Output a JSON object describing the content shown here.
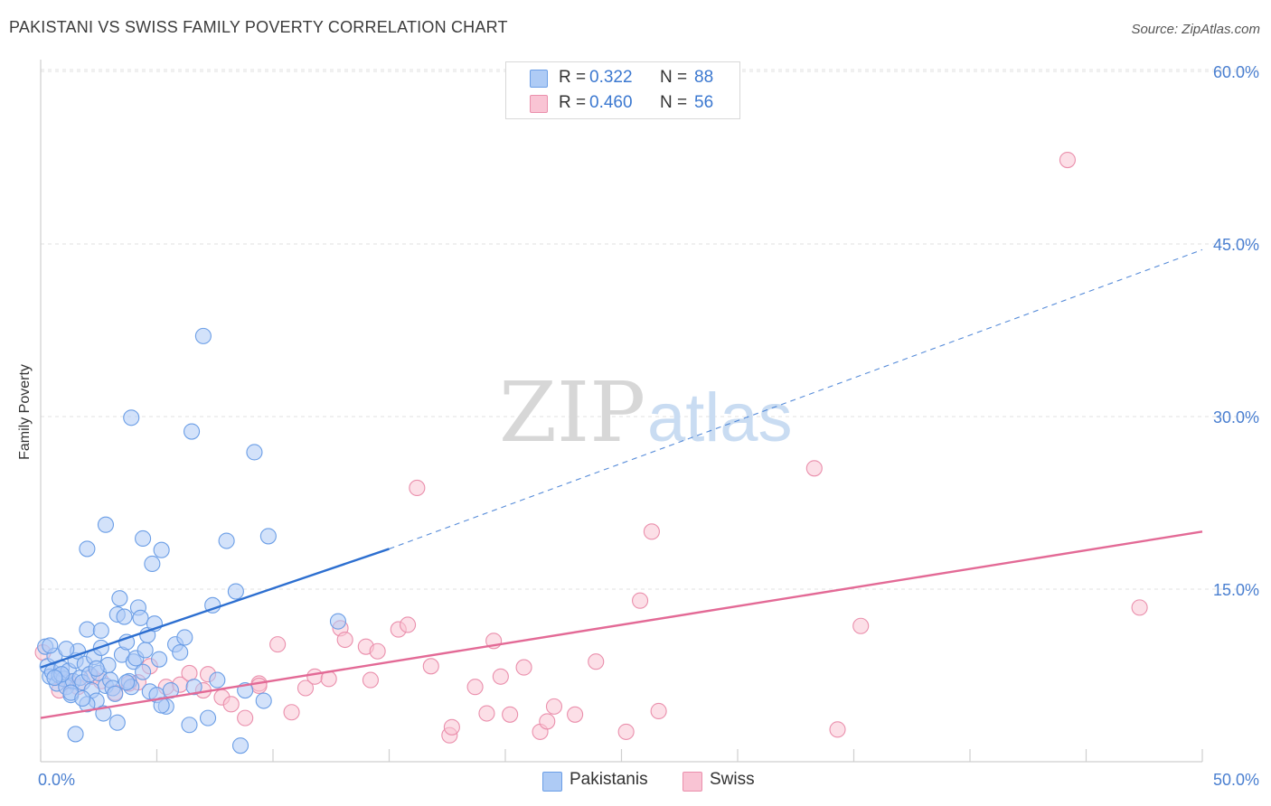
{
  "header": {
    "title": "PAKISTANI VS SWISS FAMILY POVERTY CORRELATION CHART",
    "source": "Source: ZipAtlas.com"
  },
  "watermark": {
    "zip": "ZIP",
    "atlas": "atlas"
  },
  "legend": {
    "rows": [
      {
        "r_label": "R =",
        "r_value": "0.322",
        "n_label": "N =",
        "n_value": "88",
        "color": "#aecbf5",
        "border": "#6b9ee6"
      },
      {
        "r_label": "R =",
        "r_value": "0.460",
        "n_label": "N =",
        "n_value": "56",
        "color": "#f9c4d4",
        "border": "#ea8fac"
      }
    ]
  },
  "bottom_legend": [
    {
      "label": "Pakistanis",
      "color": "#aecbf5",
      "border": "#6b9ee6"
    },
    {
      "label": "Swiss",
      "color": "#f9c4d4",
      "border": "#ea8fac"
    }
  ],
  "chart_data": {
    "type": "scatter",
    "title": "PAKISTANI VS SWISS FAMILY POVERTY CORRELATION CHART",
    "xlabel": "",
    "ylabel": "Family Poverty",
    "xlim": [
      0,
      50
    ],
    "ylim": [
      0,
      63
    ],
    "x_tick_labels": [
      "0.0%",
      "50.0%"
    ],
    "y_ticks": [
      15,
      30,
      45,
      60
    ],
    "y_tick_labels": [
      "15.0%",
      "30.0%",
      "45.0%",
      "60.0%"
    ],
    "grid": true,
    "legend_position": "top-center",
    "series": [
      {
        "name": "Pakistanis",
        "color": "#6b9ee6",
        "fill": "#aecbf5",
        "line_color": "#2d6fd0",
        "trend": {
          "x0": 0,
          "y0": 8.2,
          "x1": 15,
          "y1": 18.5,
          "dashed_to_x": 50,
          "dashed_to_y": 44.5
        },
        "points": [
          [
            0.2,
            10.0
          ],
          [
            0.3,
            8.3
          ],
          [
            0.4,
            7.4
          ],
          [
            0.5,
            7.8
          ],
          [
            0.6,
            9.2
          ],
          [
            0.7,
            6.8
          ],
          [
            0.8,
            7.5
          ],
          [
            0.9,
            8.1
          ],
          [
            1.0,
            7.2
          ],
          [
            1.1,
            6.5
          ],
          [
            1.2,
            7.9
          ],
          [
            1.3,
            5.8
          ],
          [
            1.4,
            7.0
          ],
          [
            1.5,
            8.8
          ],
          [
            1.6,
            9.6
          ],
          [
            1.7,
            7.3
          ],
          [
            1.8,
            6.9
          ],
          [
            1.9,
            8.5
          ],
          [
            2.0,
            11.5
          ],
          [
            2.1,
            7.6
          ],
          [
            2.2,
            6.2
          ],
          [
            2.3,
            9.1
          ],
          [
            2.4,
            5.3
          ],
          [
            2.5,
            7.7
          ],
          [
            2.6,
            11.4
          ],
          [
            2.7,
            4.2
          ],
          [
            2.8,
            6.6
          ],
          [
            2.9,
            8.4
          ],
          [
            3.0,
            7.1
          ],
          [
            3.1,
            6.4
          ],
          [
            3.2,
            5.9
          ],
          [
            3.3,
            12.8
          ],
          [
            3.4,
            14.2
          ],
          [
            3.5,
            9.3
          ],
          [
            3.6,
            12.6
          ],
          [
            3.7,
            10.4
          ],
          [
            3.8,
            7.0
          ],
          [
            3.9,
            6.5
          ],
          [
            4.0,
            8.7
          ],
          [
            4.1,
            9.0
          ],
          [
            4.2,
            13.4
          ],
          [
            4.3,
            12.5
          ],
          [
            4.4,
            7.8
          ],
          [
            4.5,
            9.7
          ],
          [
            4.6,
            11.0
          ],
          [
            4.7,
            6.1
          ],
          [
            4.8,
            17.2
          ],
          [
            4.9,
            12.0
          ],
          [
            5.0,
            5.8
          ],
          [
            5.1,
            8.9
          ],
          [
            5.2,
            18.4
          ],
          [
            5.4,
            4.8
          ],
          [
            5.6,
            6.2
          ],
          [
            5.8,
            10.2
          ],
          [
            6.0,
            9.5
          ],
          [
            6.2,
            10.8
          ],
          [
            6.4,
            3.2
          ],
          [
            6.6,
            6.5
          ],
          [
            7.0,
            37.0
          ],
          [
            7.2,
            3.8
          ],
          [
            7.4,
            13.6
          ],
          [
            7.6,
            7.1
          ],
          [
            8.0,
            19.2
          ],
          [
            8.4,
            14.8
          ],
          [
            8.6,
            1.4
          ],
          [
            8.8,
            6.2
          ],
          [
            9.2,
            26.9
          ],
          [
            9.6,
            5.3
          ],
          [
            9.8,
            19.6
          ],
          [
            1.5,
            2.4
          ],
          [
            2.0,
            5.0
          ],
          [
            2.8,
            20.6
          ],
          [
            2.0,
            18.5
          ],
          [
            3.9,
            29.9
          ],
          [
            4.4,
            19.4
          ],
          [
            6.5,
            28.7
          ],
          [
            12.8,
            12.2
          ],
          [
            1.1,
            9.8
          ],
          [
            0.9,
            7.6
          ],
          [
            1.3,
            6.0
          ],
          [
            2.4,
            8.1
          ],
          [
            3.3,
            3.4
          ],
          [
            3.7,
            6.9
          ],
          [
            1.8,
            5.5
          ],
          [
            0.6,
            7.3
          ],
          [
            2.6,
            9.9
          ],
          [
            0.4,
            10.1
          ],
          [
            5.2,
            4.9
          ]
        ]
      },
      {
        "name": "Swiss",
        "color": "#ea8fac",
        "fill": "#f9c4d4",
        "line_color": "#e36a96",
        "trend": {
          "x0": 0,
          "y0": 3.8,
          "x1": 50,
          "y1": 20.0
        },
        "points": [
          [
            0.1,
            9.5
          ],
          [
            0.8,
            6.2
          ],
          [
            1.2,
            7.0
          ],
          [
            1.6,
            6.5
          ],
          [
            2.2,
            7.4
          ],
          [
            2.6,
            7.0
          ],
          [
            3.2,
            6.0
          ],
          [
            3.8,
            6.8
          ],
          [
            4.2,
            6.9
          ],
          [
            4.7,
            8.3
          ],
          [
            5.4,
            6.5
          ],
          [
            6.0,
            6.7
          ],
          [
            6.4,
            7.7
          ],
          [
            7.0,
            6.2
          ],
          [
            7.2,
            7.6
          ],
          [
            7.8,
            5.6
          ],
          [
            8.2,
            5.0
          ],
          [
            8.8,
            3.8
          ],
          [
            9.4,
            6.8
          ],
          [
            10.2,
            10.2
          ],
          [
            10.8,
            4.3
          ],
          [
            11.4,
            6.4
          ],
          [
            11.8,
            7.4
          ],
          [
            12.4,
            7.2
          ],
          [
            12.9,
            11.6
          ],
          [
            13.1,
            10.6
          ],
          [
            14.0,
            10.0
          ],
          [
            14.2,
            7.1
          ],
          [
            14.5,
            9.6
          ],
          [
            15.4,
            11.5
          ],
          [
            15.8,
            11.9
          ],
          [
            16.2,
            23.8
          ],
          [
            16.8,
            8.3
          ],
          [
            17.6,
            2.3
          ],
          [
            17.7,
            3.0
          ],
          [
            18.7,
            6.5
          ],
          [
            19.2,
            4.2
          ],
          [
            19.5,
            10.5
          ],
          [
            19.8,
            7.4
          ],
          [
            20.2,
            4.1
          ],
          [
            20.8,
            8.2
          ],
          [
            21.5,
            2.6
          ],
          [
            21.8,
            3.5
          ],
          [
            22.1,
            4.8
          ],
          [
            23.0,
            4.1
          ],
          [
            23.9,
            8.7
          ],
          [
            25.2,
            2.6
          ],
          [
            25.8,
            14.0
          ],
          [
            26.3,
            20.0
          ],
          [
            26.6,
            4.4
          ],
          [
            33.3,
            25.5
          ],
          [
            34.3,
            2.8
          ],
          [
            35.3,
            11.8
          ],
          [
            44.2,
            52.3
          ],
          [
            47.3,
            13.4
          ],
          [
            9.4,
            6.6
          ]
        ]
      }
    ]
  }
}
